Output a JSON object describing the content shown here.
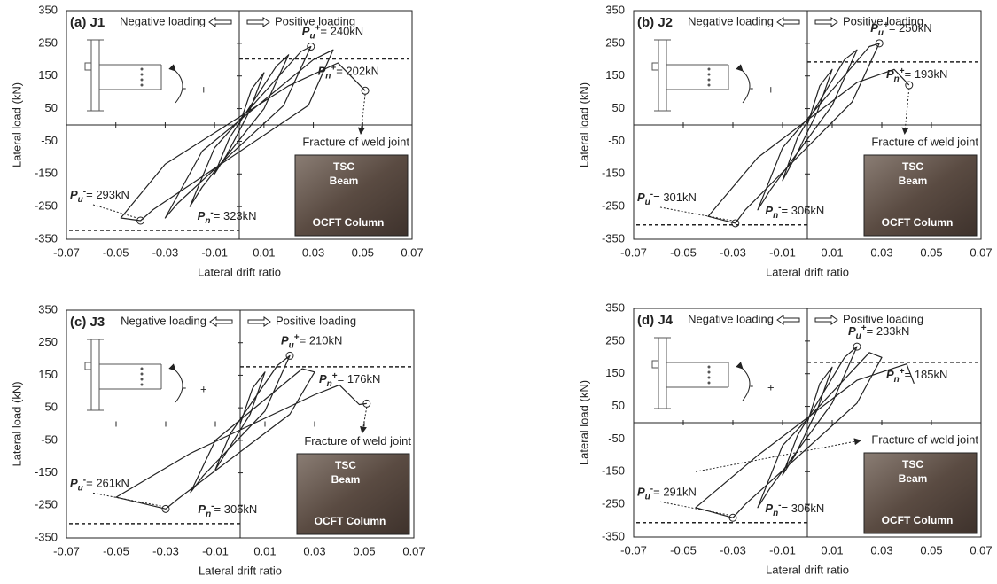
{
  "chart_data": [
    {
      "type": "line",
      "title": "(a) J1",
      "negative_label": "Negative loading",
      "positive_label": "Positive loading",
      "xlabel": "Lateral drift ratio",
      "ylabel": "Lateral load (kN)",
      "xlim": [
        -0.07,
        0.07
      ],
      "ylim": [
        -350,
        350
      ],
      "xticks": [
        -0.07,
        -0.05,
        -0.03,
        -0.01,
        0.01,
        0.03,
        0.05,
        0.07
      ],
      "yticks": [
        350,
        250,
        150,
        50,
        -50,
        -150,
        -250,
        -350
      ],
      "series": [
        {
          "color": "#222222",
          "x": [
            0,
            0.005,
            0.01,
            0.004,
            -0.005,
            -0.01,
            -0.004,
            0.015,
            0.02,
            0.01,
            -0.015,
            -0.02,
            -0.01,
            0.025,
            0.029,
            0.018,
            -0.025,
            -0.03,
            -0.015,
            0.03,
            0.038,
            0.028,
            -0.035,
            -0.04,
            -0.048,
            -0.03,
            0.02,
            0.04,
            0.051
          ],
          "values": [
            0,
            110,
            160,
            40,
            -90,
            -150,
            -40,
            180,
            215,
            50,
            -190,
            -250,
            -70,
            225,
            240,
            60,
            -240,
            -285,
            -80,
            200,
            230,
            60,
            -260,
            -293,
            -285,
            -120,
            120,
            190,
            105
          ]
        }
      ],
      "peaks": [
        {
          "x": 0.029,
          "y": 240,
          "symbol": "P",
          "sub": "u",
          "sup": "+",
          "text": "= 240kN"
        },
        {
          "x": -0.04,
          "y": -293,
          "symbol": "P",
          "sub": "u",
          "sup": "-",
          "text": "= 293kN"
        }
      ],
      "nominal": [
        {
          "value": 202,
          "symbol": "P",
          "sub": "n",
          "sup": "+",
          "text": "= 202kN"
        },
        {
          "value": -323,
          "symbol": "P",
          "sub": "n",
          "sup": "-",
          "text": "= 323kN"
        }
      ],
      "fracture": {
        "text": "Fracture of weld joint",
        "x": 0.051,
        "y": 105,
        "marker": true
      },
      "photo_labels": [
        "TSC",
        "Beam",
        "OCFT Column"
      ],
      "moment_signs": [
        "-",
        "+"
      ]
    },
    {
      "type": "line",
      "title": "(b) J2",
      "negative_label": "Negative loading",
      "positive_label": "Positive loading",
      "xlabel": "Lateral drift ratio",
      "ylabel": "Lateral load (kN)",
      "xlim": [
        -0.07,
        0.07
      ],
      "ylim": [
        -350,
        350
      ],
      "xticks": [
        -0.07,
        -0.05,
        -0.03,
        -0.01,
        0.01,
        0.03,
        0.05,
        0.07
      ],
      "yticks": [
        350,
        250,
        150,
        50,
        -50,
        -150,
        -250,
        -350
      ],
      "series": [
        {
          "color": "#222222",
          "x": [
            0,
            0.005,
            0.01,
            0.004,
            -0.005,
            -0.01,
            -0.004,
            0.015,
            0.02,
            0.01,
            -0.015,
            -0.02,
            -0.01,
            0.025,
            0.029,
            0.018,
            -0.025,
            -0.029,
            -0.04,
            -0.02,
            0.02,
            0.035,
            0.041
          ],
          "values": [
            0,
            120,
            170,
            40,
            -100,
            -170,
            -40,
            200,
            230,
            60,
            -200,
            -260,
            -70,
            240,
            250,
            70,
            -260,
            -301,
            -280,
            -100,
            130,
            170,
            122
          ]
        }
      ],
      "peaks": [
        {
          "x": 0.029,
          "y": 250,
          "symbol": "P",
          "sub": "u",
          "sup": "+",
          "text": "= 250kN"
        },
        {
          "x": -0.029,
          "y": -301,
          "symbol": "P",
          "sub": "u",
          "sup": "-",
          "text": "= 301kN"
        }
      ],
      "nominal": [
        {
          "value": 193,
          "symbol": "P",
          "sub": "n",
          "sup": "+",
          "text": "= 193kN"
        },
        {
          "value": -306,
          "symbol": "P",
          "sub": "n",
          "sup": "-",
          "text": "= 306kN"
        }
      ],
      "fracture": {
        "text": "Fracture of weld joint",
        "x": 0.041,
        "y": 122,
        "marker": true
      },
      "photo_labels": [
        "TSC",
        "Beam",
        "OCFT Column"
      ],
      "moment_signs": [
        "-",
        "+"
      ]
    },
    {
      "type": "line",
      "title": "(c) J3",
      "negative_label": "Negative loading",
      "positive_label": "Positive loading",
      "xlabel": "Lateral drift ratio",
      "ylabel": "Lateral load (kN)",
      "xlim": [
        -0.07,
        0.07
      ],
      "ylim": [
        -350,
        350
      ],
      "xticks": [
        -0.07,
        -0.05,
        -0.03,
        -0.01,
        0.01,
        0.03,
        0.05,
        0.07
      ],
      "yticks": [
        350,
        250,
        150,
        50,
        -50,
        -150,
        -250,
        -350
      ],
      "series": [
        {
          "color": "#222222",
          "x": [
            0,
            0.005,
            0.01,
            0.004,
            -0.005,
            -0.01,
            -0.004,
            0.015,
            0.02,
            0.01,
            -0.015,
            -0.02,
            -0.01,
            0.025,
            0.03,
            0.02,
            -0.025,
            -0.03,
            -0.05,
            -0.02,
            0.03,
            0.04,
            0.048,
            0.051
          ],
          "values": [
            0,
            110,
            160,
            30,
            -80,
            -140,
            -30,
            180,
            210,
            40,
            -160,
            -210,
            -50,
            170,
            160,
            30,
            -230,
            -261,
            -225,
            -90,
            90,
            120,
            60,
            63
          ]
        }
      ],
      "peaks": [
        {
          "x": 0.02,
          "y": 210,
          "symbol": "P",
          "sub": "u",
          "sup": "+",
          "text": "= 210kN"
        },
        {
          "x": -0.03,
          "y": -261,
          "symbol": "P",
          "sub": "u",
          "sup": "-",
          "text": "= 261kN"
        }
      ],
      "nominal": [
        {
          "value": 176,
          "symbol": "P",
          "sub": "n",
          "sup": "+",
          "text": "= 176kN"
        },
        {
          "value": -306,
          "symbol": "P",
          "sub": "n",
          "sup": "-",
          "text": "= 306kN"
        }
      ],
      "fracture": {
        "text": "Fracture of weld joint",
        "x": 0.051,
        "y": 63,
        "marker": true
      },
      "photo_labels": [
        "TSC",
        "Beam",
        "OCFT Column"
      ],
      "moment_signs": [
        "-",
        "+"
      ]
    },
    {
      "type": "line",
      "title": "(d) J4",
      "negative_label": "Negative loading",
      "positive_label": "Positive loading",
      "xlabel": "Lateral drift ratio",
      "ylabel": "Lateral load (kN)",
      "xlim": [
        -0.07,
        0.07
      ],
      "ylim": [
        -350,
        350
      ],
      "xticks": [
        -0.07,
        -0.05,
        -0.03,
        -0.01,
        0.01,
        0.03,
        0.05,
        0.07
      ],
      "yticks": [
        350,
        250,
        150,
        50,
        -50,
        -150,
        -250,
        -350
      ],
      "series": [
        {
          "color": "#222222",
          "x": [
            0,
            0.005,
            0.01,
            0.004,
            -0.005,
            -0.01,
            -0.004,
            0.015,
            0.02,
            0.01,
            -0.015,
            -0.02,
            -0.01,
            0.025,
            0.03,
            0.02,
            -0.025,
            -0.03,
            -0.045,
            -0.02,
            0.02,
            0.04,
            0.043
          ],
          "values": [
            0,
            120,
            170,
            40,
            -100,
            -160,
            -40,
            200,
            233,
            60,
            -200,
            -260,
            -70,
            215,
            200,
            60,
            -250,
            -291,
            -260,
            -100,
            130,
            180,
            120
          ]
        }
      ],
      "peaks": [
        {
          "x": 0.02,
          "y": 233,
          "symbol": "P",
          "sub": "u",
          "sup": "+",
          "text": "= 233kN"
        },
        {
          "x": -0.03,
          "y": -291,
          "symbol": "P",
          "sub": "u",
          "sup": "-",
          "text": "= 291kN"
        }
      ],
      "nominal": [
        {
          "value": 185,
          "symbol": "P",
          "sub": "n",
          "sup": "+",
          "text": "= 185kN"
        },
        {
          "value": -306,
          "symbol": "P",
          "sub": "n",
          "sup": "-",
          "text": "= 306kN"
        }
      ],
      "fracture": {
        "text": "Fracture of weld joint",
        "x": -0.045,
        "y": -150,
        "marker": false
      },
      "photo_labels": [
        "TSC",
        "Beam",
        "OCFT Column"
      ],
      "moment_signs": [
        "-",
        "+"
      ]
    }
  ]
}
